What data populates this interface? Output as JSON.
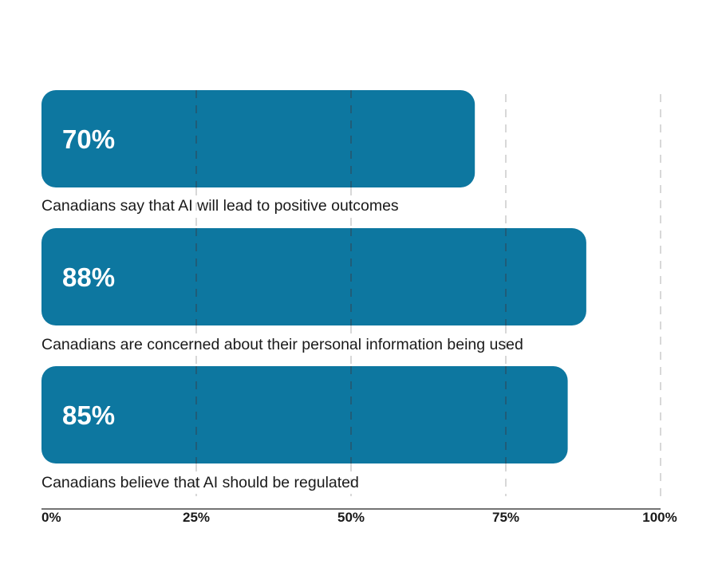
{
  "chart_data": {
    "type": "bar",
    "orientation": "horizontal",
    "categories": [
      "Canadians say that AI will lead to positive outcomes",
      "Canadians are concerned about their personal information being used",
      "Canadians believe that AI should be regulated"
    ],
    "values": [
      70,
      88,
      85
    ],
    "value_labels": [
      "70%",
      "88%",
      "85%"
    ],
    "xlim": [
      0,
      100
    ],
    "ticks": [
      0,
      25,
      50,
      75,
      100
    ],
    "tick_labels": [
      "0%",
      "25%",
      "50%",
      "75%",
      "100%"
    ],
    "grid": "vertical dashed",
    "bar_color": "#0d77a0",
    "value_label_color": "#ffffff",
    "grid_color_on_bar": "#2b4f63",
    "grid_color_off_bar": "#c4c4c4",
    "axis_color": "#222222"
  }
}
